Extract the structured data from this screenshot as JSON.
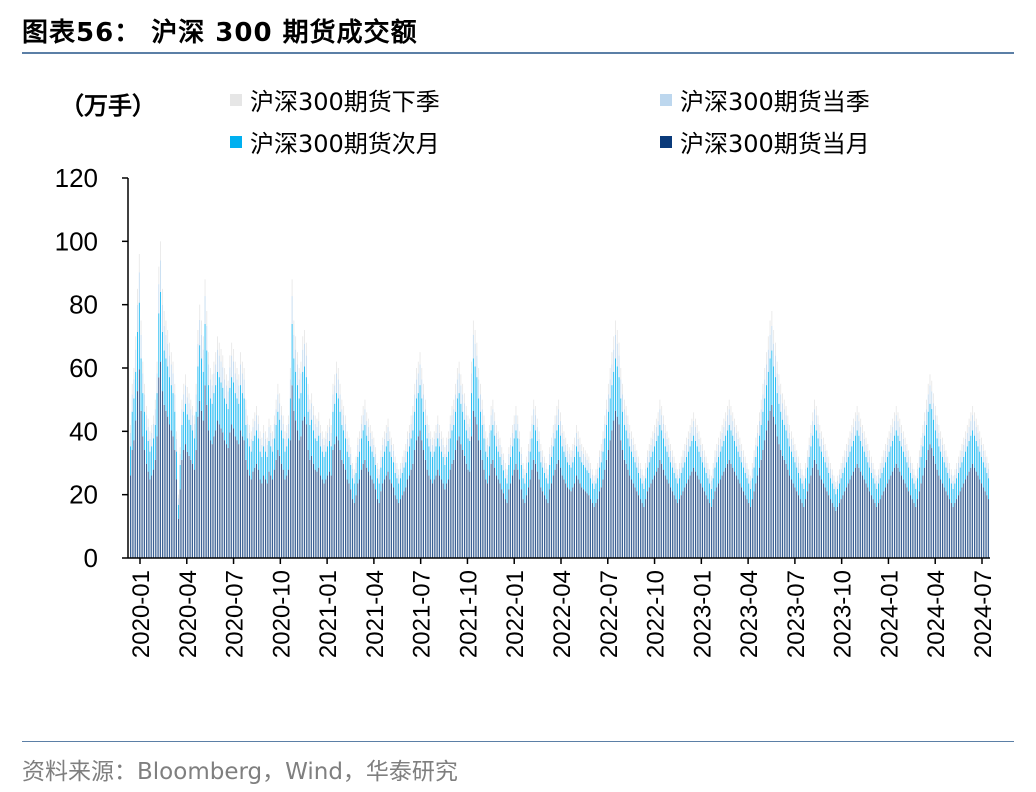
{
  "header": {
    "title": "图表56：  沪深 300 期货成交额"
  },
  "footer": {
    "source": "资料来源：Bloomberg，Wind，华泰研究"
  },
  "chart_data": {
    "type": "bar",
    "stacked": true,
    "unit_label": "（万手）",
    "ylim": [
      0,
      120
    ],
    "yticks": [
      "0",
      "20",
      "40",
      "60",
      "80",
      "100",
      "120"
    ],
    "ytick_values": [
      0,
      20,
      40,
      60,
      80,
      100,
      120
    ],
    "xticks": [
      "2020-01",
      "2020-04",
      "2020-07",
      "2020-10",
      "2021-01",
      "2021-04",
      "2021-07",
      "2021-10",
      "2022-01",
      "2022-04",
      "2022-07",
      "2022-10",
      "2023-01",
      "2023-04",
      "2023-07",
      "2023-10",
      "2024-01",
      "2024-04",
      "2024-07"
    ],
    "x_range": [
      "2020-01",
      "2024-07"
    ],
    "legend": [
      {
        "name": "沪深300期货下季",
        "color": "#e6e6e6"
      },
      {
        "name": "沪深300期货当季",
        "color": "#bdd7ee"
      },
      {
        "name": "沪深300期货次月",
        "color": "#00b0f0"
      },
      {
        "name": "沪深300期货当月",
        "color": "#0a3a7a"
      }
    ],
    "approx_daily_total": [
      42,
      55,
      60,
      70,
      85,
      96,
      75,
      62,
      55,
      48,
      44,
      40,
      42,
      45,
      50,
      62,
      92,
      100,
      85,
      78,
      75,
      72,
      68,
      65,
      62,
      55,
      40,
      20,
      35,
      50,
      55,
      58,
      54,
      52,
      50,
      48,
      45,
      55,
      72,
      80,
      75,
      70,
      88,
      78,
      65,
      60,
      58,
      62,
      65,
      70,
      68,
      66,
      64,
      60,
      58,
      56,
      64,
      68,
      66,
      62,
      60,
      58,
      65,
      62,
      60,
      50,
      45,
      42,
      40,
      44,
      46,
      48,
      45,
      40,
      38,
      42,
      40,
      38,
      44,
      42,
      40,
      45,
      50,
      55,
      52,
      48,
      45,
      40,
      42,
      45,
      60,
      88,
      75,
      70,
      65,
      60,
      62,
      70,
      72,
      68,
      55,
      50,
      52,
      48,
      45,
      44,
      46,
      42,
      40,
      38,
      40,
      42,
      44,
      42,
      55,
      58,
      62,
      60,
      55,
      50,
      48,
      45,
      40,
      38,
      35,
      30,
      28,
      32,
      38,
      40,
      45,
      48,
      50,
      46,
      44,
      42,
      40,
      38,
      35,
      30,
      28,
      34,
      38,
      40,
      42,
      44,
      40,
      38,
      36,
      32,
      30,
      28,
      30,
      32,
      34,
      36,
      40,
      42,
      45,
      48,
      55,
      60,
      62,
      65,
      60,
      55,
      50,
      45,
      42,
      40,
      38,
      40,
      42,
      45,
      42,
      40,
      38,
      35,
      38,
      40,
      45,
      48,
      50,
      55,
      60,
      62,
      58,
      55,
      52,
      48,
      45,
      44,
      62,
      75,
      72,
      68,
      60,
      55,
      50,
      45,
      40,
      38,
      42,
      48,
      50,
      46,
      42,
      40,
      38,
      35,
      33,
      30,
      28,
      35,
      38,
      42,
      45,
      48,
      45,
      40,
      35,
      30,
      28,
      32,
      36,
      40,
      45,
      50,
      48,
      44,
      40,
      36,
      34,
      32,
      30,
      28,
      35,
      38,
      42,
      45,
      48,
      50,
      46,
      42,
      40,
      38,
      36,
      35,
      34,
      36,
      38,
      42,
      40,
      38,
      36,
      35,
      34,
      33,
      32,
      30,
      28,
      26,
      28,
      30,
      34,
      36,
      40,
      45,
      50,
      55,
      60,
      65,
      70,
      75,
      72,
      68,
      60,
      55,
      50,
      48,
      45,
      42,
      40,
      38,
      36,
      34,
      32,
      30,
      28,
      26,
      30,
      34,
      36,
      38,
      40,
      42,
      44,
      46,
      50,
      48,
      45,
      42,
      40,
      38,
      36,
      34,
      32,
      30,
      28,
      30,
      32,
      34,
      36,
      38,
      40,
      42,
      44,
      46,
      44,
      42,
      40,
      38,
      36,
      34,
      32,
      30,
      28,
      26,
      30,
      34,
      36,
      38,
      40,
      42,
      44,
      46,
      48,
      50,
      48,
      46,
      44,
      42,
      40,
      38,
      36,
      34,
      32,
      30,
      28,
      26,
      30,
      34,
      38,
      42,
      46,
      50,
      55,
      60,
      65,
      70,
      75,
      78,
      72,
      68,
      62,
      58,
      55,
      52,
      50,
      48,
      45,
      42,
      40,
      38,
      36,
      34,
      32,
      30,
      28,
      26,
      30,
      34,
      38,
      42,
      46,
      50,
      48,
      45,
      42,
      40,
      38,
      36,
      34,
      32,
      30,
      28,
      26,
      24,
      26,
      28,
      30,
      32,
      34,
      36,
      38,
      40,
      42,
      44,
      46,
      48,
      46,
      44,
      42,
      40,
      38,
      36,
      34,
      32,
      30,
      28,
      26,
      28,
      30,
      32,
      34,
      36,
      38,
      40,
      42,
      44,
      46,
      48,
      46,
      44,
      42,
      40,
      38,
      36,
      34,
      32,
      30,
      28,
      26,
      30,
      34,
      38,
      42,
      46,
      50,
      55,
      58,
      56,
      52,
      48,
      45,
      42,
      40,
      38,
      36,
      34,
      32,
      30,
      28,
      26,
      28,
      30,
      32,
      34,
      36,
      38,
      40,
      42,
      44,
      46,
      48,
      46,
      44,
      42,
      40,
      38,
      36,
      34,
      32,
      30
    ]
  }
}
